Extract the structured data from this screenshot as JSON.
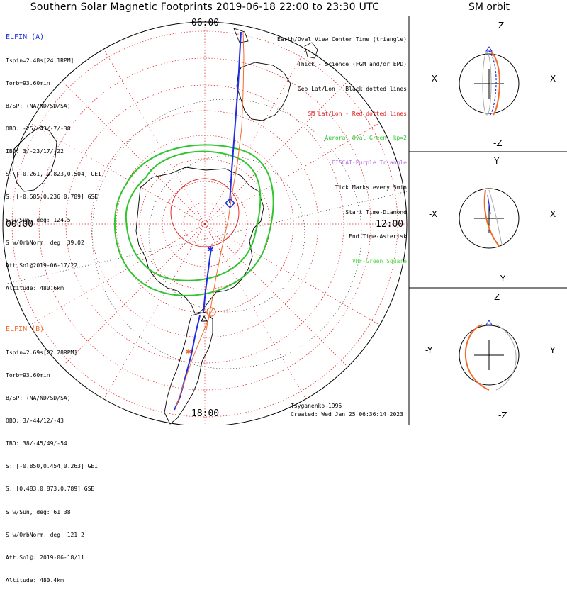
{
  "title": "Southern Solar Magnetic Footprints 2019-06-18 22:00 to 23:30 UTC",
  "sm_orbit_title": "SM orbit",
  "hour_labels": {
    "top": "06:00",
    "left": "00:00",
    "right": "12:00",
    "bottom": "18:00"
  },
  "elfin_a": {
    "header": "ELFIN (A)",
    "lines": [
      "Tspin=2.48s[24.1RPM]",
      "Torb=93.60min",
      "B/SP: (NA/ND/SD/SA)",
      "OBO: -25/-43/-7/-38",
      "IBO: 3/-23/17/-22",
      "S: [-0.261,-0.823,0.504] GEI",
      "S: [-0.585,0.236,0.789] GSE",
      "S w/Sun, deg: 124.5",
      "S w/OrbNorm, deg: 39.02",
      "Att.Sol@2019-06-17/22",
      "Altitude: 480.6km"
    ]
  },
  "elfin_b": {
    "header": "ELFIN (B)",
    "lines": [
      "Tspin=2.69s[22.28RPM]",
      "Torb=93.60min",
      "B/SP: (NA/ND/SD/SA)",
      "OBO: 3/-44/12/-43",
      "IBO: 38/-45/49/-54",
      "S: [-0.850,0.454,0.263] GEI",
      "S: [0.483,0.873,0.789] GSE",
      "S w/Sun, deg: 61.38",
      "S w/OrbNorm, deg: 121.2",
      "Att.Sol@: 2019-06-18/11",
      "Altitude: 480.4km"
    ]
  },
  "legend": [
    {
      "text": "Earth/Oval View Center Time (triangle)",
      "color": "#000000"
    },
    {
      "text": "Thick - Science (FGM and/or EPD)",
      "color": "#000000"
    },
    {
      "text": "Geo Lat/Lon - Black dotted lines",
      "color": "#000000"
    },
    {
      "text": "SM Lat/Lon - Red dotted lines",
      "color": "#e01818"
    },
    {
      "text": "Auroral Oval-Green, kp=2",
      "color": "#2fc52f"
    },
    {
      "text": "EISCAT-Purple Triangle",
      "color": "#b56ee0"
    },
    {
      "text": "Tick Marks every 5min",
      "color": "#000000"
    },
    {
      "text": "Start Time-Diamond",
      "color": "#000000"
    },
    {
      "text": "End Time-Asterisk",
      "color": "#000000"
    },
    {
      "text": "VHF-Green Square",
      "color": "#52d84f"
    }
  ],
  "credits": {
    "author": "Tsyganenko-1996",
    "created": "Created: Wed Jan 25 06:36:14 2023"
  },
  "sm_panels": [
    {
      "top": "Z",
      "bottom": "-Z",
      "left": "-X",
      "right": "X"
    },
    {
      "top": "Y",
      "bottom": "-Y",
      "left": "-X",
      "right": "X"
    },
    {
      "top": "Z",
      "bottom": "-Z",
      "left": "-Y",
      "right": "Y"
    }
  ],
  "colors": {
    "elfin_a": "#1f2ee0",
    "elfin_b": "#f26a2a",
    "oval": "#2fc52f",
    "sm_grid": "#e01818",
    "geo_grid": "#000000"
  },
  "chart_data": {
    "type": "scatter",
    "title": "Southern Solar Magnetic Footprints 2019-06-18 22:00 to 23:30 UTC",
    "projection": "polar, southern hemisphere, SM coordinates, 06:00 MLT at top",
    "mlt_labels": [
      "00:00",
      "06:00",
      "12:00",
      "18:00"
    ],
    "series": []
  }
}
